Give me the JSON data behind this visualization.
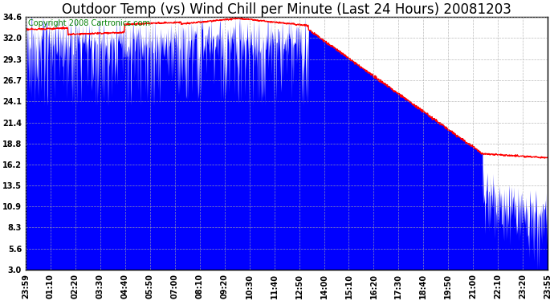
{
  "title": "Outdoor Temp (vs) Wind Chill per Minute (Last 24 Hours) 20081203",
  "copyright_text": "Copyright 2008 Cartronics.com",
  "background_color": "#ffffff",
  "plot_bg_color": "#ffffff",
  "grid_color": "#aaaaaa",
  "yticks": [
    3.0,
    5.6,
    8.3,
    10.9,
    13.5,
    16.2,
    18.8,
    21.4,
    24.1,
    26.7,
    29.3,
    32.0,
    34.6
  ],
  "xtick_labels": [
    "23:59",
    "01:10",
    "02:20",
    "03:30",
    "04:40",
    "05:50",
    "07:00",
    "08:10",
    "09:20",
    "10:30",
    "11:40",
    "12:50",
    "14:00",
    "15:10",
    "16:20",
    "17:30",
    "18:40",
    "19:50",
    "21:00",
    "22:10",
    "23:20",
    "23:55"
  ],
  "ymin": 3.0,
  "ymax": 34.6,
  "outdoor_color": "#0000ff",
  "windchill_color": "#ff0000",
  "title_fontsize": 12,
  "copyright_fontsize": 7,
  "tick_fontsize": 7
}
